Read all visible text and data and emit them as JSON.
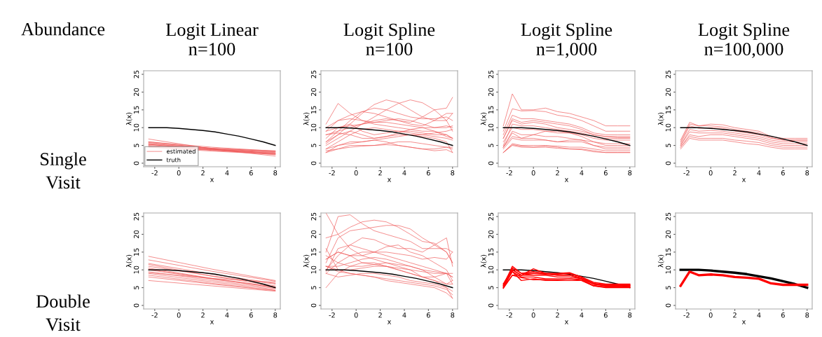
{
  "chart_data": [
    {
      "type": "line",
      "title": "Logit Linear\nn=100",
      "xlabel": "x",
      "ylabel": "λ(x)",
      "x": [
        -2.5,
        2.75,
        8
      ],
      "xlim": [
        -2.92,
        8.42
      ],
      "ylim": [
        -1,
        26
      ],
      "xticks": [
        -2,
        0,
        2,
        4,
        6,
        8
      ],
      "yticks": [
        0,
        5,
        10,
        15,
        20,
        25
      ],
      "legend": "bottom left",
      "annotations": [
        "Abundance",
        "Single\nVisit"
      ],
      "series": [
        {
          "name": "estimated",
          "color": "#ee5555",
          "values": [
            6.8,
            4.0,
            2.0
          ]
        },
        {
          "color": "#ee5555",
          "values": [
            6.0,
            4.1,
            2.7
          ]
        },
        {
          "color": "#ee5555",
          "values": [
            5.8,
            4.2,
            3.0
          ]
        },
        {
          "color": "#ee5555",
          "values": [
            5.5,
            4.2,
            3.3
          ]
        },
        {
          "color": "#ee5555",
          "values": [
            5.2,
            4.1,
            3.5
          ]
        },
        {
          "color": "#ee5555",
          "values": [
            5.0,
            3.8,
            2.9
          ]
        },
        {
          "color": "#ee5555",
          "values": [
            4.8,
            3.6,
            2.7
          ]
        },
        {
          "color": "#ee5555",
          "values": [
            4.5,
            3.8,
            3.2
          ]
        },
        {
          "color": "#ee5555",
          "values": [
            4.5,
            3.4,
            2.5
          ]
        },
        {
          "color": "#ee5555",
          "values": [
            5.5,
            3.9,
            2.6
          ]
        },
        {
          "color": "#ee5555",
          "values": [
            6.0,
            4.5,
            3.4
          ]
        },
        {
          "color": "#ee5555",
          "values": [
            5.3,
            3.7,
            2.4
          ]
        },
        {
          "name": "truth",
          "color": "#000000",
          "x": [
            -2.5,
            -1,
            0,
            1,
            2,
            3,
            4,
            5,
            6,
            7,
            8
          ],
          "values": [
            10,
            10,
            9.8,
            9.5,
            9.2,
            8.8,
            8.2,
            7.6,
            6.8,
            6,
            5
          ]
        }
      ]
    },
    {
      "type": "line",
      "title": "Logit Spline\nn=100",
      "xlabel": "x",
      "ylabel": "λ(x)",
      "x": [
        -2.5,
        -1.5,
        -0.5,
        0.5,
        1.5,
        2.5,
        3.5,
        4.5,
        5.5,
        6.5,
        7.5,
        8
      ],
      "xlim": [
        -2.92,
        8.42
      ],
      "ylim": [
        -1,
        26
      ],
      "xticks": [
        -2,
        0,
        2,
        4,
        6,
        8
      ],
      "yticks": [
        0,
        5,
        10,
        15,
        20,
        25
      ],
      "series": [
        {
          "color": "#ee5555",
          "values": [
            11,
            16.8,
            14,
            12,
            11,
            10.5,
            10,
            9.5,
            9,
            9,
            8,
            7
          ]
        },
        {
          "color": "#ee5555",
          "values": [
            8,
            9,
            10,
            11,
            12,
            12.5,
            12,
            11.5,
            13,
            15,
            15.5,
            18.5
          ]
        },
        {
          "color": "#ee5555",
          "values": [
            6,
            8,
            11,
            14,
            16.5,
            17.8,
            17,
            15,
            13,
            12,
            12,
            14
          ]
        },
        {
          "color": "#ee5555",
          "values": [
            5,
            7,
            9,
            11,
            13,
            15,
            16.8,
            17.8,
            17,
            15,
            12,
            9
          ]
        },
        {
          "color": "#ee5555",
          "values": [
            10,
            12,
            13.5,
            14.5,
            14,
            13,
            12,
            11,
            10.5,
            12,
            14,
            14
          ]
        },
        {
          "color": "#ee5555",
          "values": [
            9,
            10,
            10.5,
            11,
            11.5,
            11.5,
            11,
            10.5,
            10,
            10,
            10.5,
            10
          ]
        },
        {
          "color": "#ee5555",
          "values": [
            7,
            10,
            11,
            9,
            8,
            8.5,
            9,
            9,
            8.5,
            8,
            8,
            7
          ]
        },
        {
          "color": "#ee5555",
          "values": [
            4,
            6,
            8,
            9.5,
            10,
            9.5,
            9,
            8.5,
            8,
            8.5,
            9,
            9.5
          ]
        },
        {
          "color": "#ee5555",
          "values": [
            3,
            5,
            6,
            6,
            6.5,
            7,
            7.5,
            8,
            8,
            7.5,
            7,
            6.5
          ]
        },
        {
          "color": "#ee5555",
          "values": [
            3.5,
            4,
            5,
            5,
            5,
            5.5,
            6,
            6,
            5.5,
            5,
            4.5,
            4
          ]
        },
        {
          "color": "#ee5555",
          "values": [
            4,
            5,
            5.5,
            6,
            6.5,
            6,
            5,
            4.5,
            4,
            4,
            4.5,
            4.5
          ]
        },
        {
          "color": "#ee5555",
          "values": [
            8,
            8.5,
            8,
            7,
            7,
            7.5,
            8,
            8,
            7.5,
            7,
            6,
            3
          ]
        },
        {
          "color": "#ee5555",
          "values": [
            6,
            9,
            12,
            14.5,
            15.5,
            15,
            14,
            13,
            12.5,
            12.5,
            13,
            12
          ]
        },
        {
          "color": "#ee5555",
          "values": [
            5.5,
            8,
            9,
            8,
            7,
            7.5,
            8.5,
            9.5,
            10,
            9,
            7.5,
            7
          ]
        },
        {
          "color": "#ee5555",
          "values": [
            9,
            12,
            12.5,
            12,
            11.5,
            12,
            12.5,
            12,
            11,
            10,
            10,
            10.5
          ]
        },
        {
          "color": "#ee5555",
          "values": [
            3,
            4,
            4.5,
            4.8,
            5,
            5.2,
            5,
            4.5,
            4,
            3.5,
            3.8,
            3
          ]
        },
        {
          "color": "#000000",
          "x": [
            -2.5,
            -1,
            0,
            1,
            2,
            3,
            4,
            5,
            6,
            7,
            8
          ],
          "values": [
            10,
            10,
            9.8,
            9.5,
            9.2,
            8.8,
            8.2,
            7.6,
            6.8,
            6,
            5
          ]
        }
      ]
    },
    {
      "type": "line",
      "title": "Logit Spline\nn=1,000",
      "xlabel": "x",
      "ylabel": "λ(x)",
      "x": [
        -2.5,
        -1.75,
        -1,
        0,
        1,
        2,
        3,
        4,
        5,
        6,
        7,
        8
      ],
      "xlim": [
        -2.92,
        8.42
      ],
      "ylim": [
        -1,
        26
      ],
      "xticks": [
        -2,
        0,
        2,
        4,
        6,
        8
      ],
      "yticks": [
        0,
        5,
        10,
        15,
        20,
        25
      ],
      "series": [
        {
          "color": "#ee5555",
          "values": [
            10.5,
            19.5,
            15,
            15,
            15.5,
            14.5,
            14,
            13,
            12,
            10.5,
            10.5,
            10.5
          ]
        },
        {
          "color": "#ee5555",
          "values": [
            9,
            15.3,
            14.7,
            14.8,
            14.5,
            13.5,
            13,
            12,
            10.5,
            9,
            9,
            9
          ]
        },
        {
          "color": "#ee5555",
          "values": [
            8,
            13.5,
            12.5,
            12.5,
            12,
            11.5,
            11,
            10,
            8.5,
            8,
            8,
            8
          ]
        },
        {
          "color": "#ee5555",
          "values": [
            7,
            12.5,
            11.5,
            12,
            11.5,
            11,
            10.5,
            9.5,
            8,
            7.5,
            7.5,
            7.5
          ]
        },
        {
          "color": "#ee5555",
          "values": [
            7,
            12,
            11,
            11.5,
            11,
            10,
            9.5,
            9,
            8,
            7.5,
            7.2,
            7.2
          ]
        },
        {
          "color": "#ee5555",
          "values": [
            5,
            11,
            10.5,
            10.5,
            10,
            9.5,
            9,
            8.5,
            7.5,
            7,
            7,
            7
          ]
        },
        {
          "color": "#ee5555",
          "values": [
            4.5,
            9,
            8,
            8,
            9,
            9,
            8.5,
            7.5,
            6,
            5.5,
            5.5,
            5.5
          ]
        },
        {
          "color": "#ee5555",
          "values": [
            4.5,
            8.5,
            7,
            8,
            7.5,
            7.5,
            7,
            6.5,
            6,
            5,
            5,
            5
          ]
        },
        {
          "color": "#ee5555",
          "values": [
            4.5,
            7.5,
            7,
            7,
            6.5,
            6,
            6.5,
            6.5,
            5,
            4.5,
            4.5,
            4.5
          ]
        },
        {
          "color": "#ee5555",
          "values": [
            4,
            7,
            6.5,
            6.5,
            6.5,
            6,
            6,
            6,
            5,
            4,
            4,
            4
          ]
        },
        {
          "color": "#ee5555",
          "values": [
            3,
            5.5,
            5,
            5,
            5,
            4.8,
            4.5,
            4.5,
            4,
            3.5,
            3.5,
            3.5
          ]
        },
        {
          "color": "#ee5555",
          "values": [
            3,
            5.2,
            4.8,
            4.5,
            4.8,
            4.5,
            4,
            4,
            3.5,
            3,
            3,
            3
          ]
        },
        {
          "color": "#ee5555",
          "values": [
            3,
            5,
            4.5,
            4.5,
            4.5,
            4.2,
            4,
            3.8,
            3.2,
            3,
            3,
            3
          ]
        },
        {
          "color": "#ee5555",
          "values": [
            6,
            10,
            9.5,
            9.5,
            9,
            8.5,
            8.5,
            8,
            7,
            6.5,
            6.5,
            6.5
          ]
        },
        {
          "color": "#000000",
          "x": [
            -2.5,
            -1,
            0,
            1,
            2,
            3,
            4,
            5,
            6,
            7,
            8
          ],
          "values": [
            10,
            10,
            9.8,
            9.5,
            9.2,
            8.8,
            8.2,
            7.6,
            6.8,
            6,
            5
          ]
        }
      ]
    },
    {
      "type": "line",
      "title": "Logit Spline\nn=100,000",
      "xlabel": "x",
      "ylabel": "λ(x)",
      "x": [
        -2.5,
        -1.75,
        -1,
        0,
        1,
        2,
        3,
        4,
        5,
        6,
        7,
        8
      ],
      "xlim": [
        -2.92,
        8.42
      ],
      "ylim": [
        -1,
        26
      ],
      "xticks": [
        -2,
        0,
        2,
        4,
        6,
        8
      ],
      "yticks": [
        0,
        5,
        10,
        15,
        20,
        25
      ],
      "series": [
        {
          "color": "#ee5555",
          "values": [
            6.5,
            11.5,
            10.5,
            11,
            10.8,
            10,
            9.5,
            9,
            7.5,
            7,
            7,
            7
          ]
        },
        {
          "color": "#ee5555",
          "values": [
            6,
            11,
            10.5,
            10.5,
            10.2,
            9.5,
            9,
            8.5,
            7.2,
            6.5,
            6.5,
            6.5
          ]
        },
        {
          "color": "#ee5555",
          "values": [
            5.5,
            10.5,
            9.8,
            10,
            9.8,
            9,
            8.5,
            8,
            7,
            6.5,
            6.5,
            6.5
          ]
        },
        {
          "color": "#ee5555",
          "values": [
            5,
            9.5,
            9,
            9.2,
            9,
            8.5,
            8,
            7.5,
            6.5,
            6,
            6,
            6
          ]
        },
        {
          "color": "#ee5555",
          "values": [
            5,
            8.8,
            8.5,
            8.5,
            8.5,
            8,
            7.5,
            7,
            6,
            5.5,
            5.5,
            5.5
          ]
        },
        {
          "color": "#ee5555",
          "values": [
            4.5,
            8,
            7.5,
            8,
            8,
            7.5,
            7,
            6.5,
            5.5,
            5,
            5,
            5
          ]
        },
        {
          "color": "#ee5555",
          "values": [
            4,
            7,
            6.5,
            6.5,
            6.5,
            6,
            5.5,
            5.2,
            4.5,
            4,
            4,
            4
          ]
        },
        {
          "color": "#ee5555",
          "values": [
            4.5,
            7.5,
            7,
            7,
            7,
            6.5,
            6.2,
            5.8,
            5,
            4.5,
            4.5,
            4.5
          ]
        },
        {
          "color": "#000000",
          "x": [
            -2.5,
            -1,
            0,
            1,
            2,
            3,
            4,
            5,
            6,
            7,
            8
          ],
          "values": [
            10,
            10,
            9.8,
            9.5,
            9.2,
            8.8,
            8.2,
            7.6,
            6.8,
            6,
            5
          ]
        }
      ]
    },
    {
      "type": "line",
      "xlabel": "x",
      "ylabel": "λ(x)",
      "x": [
        -2.5,
        2.75,
        8
      ],
      "xlim": [
        -2.92,
        8.42
      ],
      "ylim": [
        -1,
        26
      ],
      "xticks": [
        -2,
        0,
        2,
        4,
        6,
        8
      ],
      "yticks": [
        0,
        5,
        10,
        15,
        20,
        25
      ],
      "annotations": [
        "Double\nVisit"
      ],
      "series": [
        {
          "color": "#ee5555",
          "values": [
            13.8,
            10.2,
            7.0
          ]
        },
        {
          "color": "#ee5555",
          "values": [
            12.8,
            9.6,
            6.8
          ]
        },
        {
          "color": "#ee5555",
          "values": [
            11.8,
            8.8,
            6.2
          ]
        },
        {
          "color": "#ee5555",
          "values": [
            11.5,
            8.2,
            5.5
          ]
        },
        {
          "color": "#ee5555",
          "values": [
            11,
            8.3,
            6
          ]
        },
        {
          "color": "#ee5555",
          "values": [
            10.5,
            7.6,
            5.2
          ]
        },
        {
          "color": "#ee5555",
          "values": [
            10,
            7.4,
            5.2
          ]
        },
        {
          "color": "#ee5555",
          "values": [
            9.5,
            7,
            4.8
          ]
        },
        {
          "color": "#ee5555",
          "values": [
            9,
            6.6,
            4.5
          ]
        },
        {
          "color": "#ee5555",
          "values": [
            8.5,
            6.2,
            4.2
          ]
        },
        {
          "color": "#ee5555",
          "values": [
            8,
            6,
            4.2
          ]
        },
        {
          "color": "#ee5555",
          "values": [
            7,
            5.5,
            4
          ]
        },
        {
          "color": "#ee5555",
          "values": [
            10.2,
            7.5,
            5
          ]
        },
        {
          "color": "#ee5555",
          "values": [
            9.2,
            7.6,
            6.5
          ]
        },
        {
          "color": "#000000",
          "x": [
            -2.5,
            -1,
            0,
            1,
            2,
            3,
            4,
            5,
            6,
            7,
            8
          ],
          "values": [
            10,
            10,
            9.8,
            9.5,
            9.2,
            8.8,
            8.2,
            7.6,
            6.8,
            6,
            5
          ]
        }
      ]
    },
    {
      "type": "line",
      "xlabel": "x",
      "ylabel": "λ(x)",
      "x": [
        -2.5,
        -1.5,
        -0.5,
        0.5,
        1.5,
        2.5,
        3.5,
        4.5,
        5.5,
        6.5,
        7.5,
        8
      ],
      "xlim": [
        -2.92,
        8.42
      ],
      "ylim": [
        -1,
        26
      ],
      "xticks": [
        -2,
        0,
        2,
        4,
        6,
        8
      ],
      "yticks": [
        0,
        5,
        10,
        15,
        20,
        25
      ],
      "series": [
        {
          "color": "#ee5555",
          "values": [
            26,
            20,
            16,
            14,
            13,
            12,
            11,
            10,
            8,
            7,
            5,
            2
          ]
        },
        {
          "color": "#ee5555",
          "values": [
            19,
            20,
            22,
            23.5,
            24,
            23.5,
            22,
            20,
            18,
            17.5,
            15,
            12
          ]
        },
        {
          "color": "#ee5555",
          "values": [
            15,
            25,
            25.5,
            23,
            21,
            20,
            19,
            18,
            16,
            16,
            16,
            15
          ]
        },
        {
          "color": "#ee5555",
          "values": [
            12,
            19,
            21,
            21.5,
            22,
            22.5,
            22.5,
            21.5,
            19,
            17,
            15,
            12
          ]
        },
        {
          "color": "#ee5555",
          "values": [
            10,
            14,
            17,
            19,
            18.5,
            17,
            16,
            16,
            15,
            17,
            19,
            11
          ]
        },
        {
          "color": "#ee5555",
          "values": [
            13,
            15,
            14,
            14,
            15,
            16.5,
            17,
            15,
            14,
            12,
            10,
            7
          ]
        },
        {
          "color": "#ee5555",
          "values": [
            9,
            12,
            14,
            15,
            15,
            15,
            14.5,
            14,
            13,
            13.5,
            13,
            15
          ]
        },
        {
          "color": "#ee5555",
          "values": [
            14,
            12,
            11,
            11,
            11.5,
            12,
            11.5,
            11,
            10,
            8,
            6,
            6
          ]
        },
        {
          "color": "#ee5555",
          "values": [
            5,
            9,
            11,
            12,
            12,
            11,
            10,
            9,
            8,
            8,
            9,
            8
          ]
        },
        {
          "color": "#ee5555",
          "values": [
            16,
            10,
            10,
            10.5,
            11,
            11,
            10.5,
            10,
            9.5,
            9,
            9,
            9
          ]
        },
        {
          "color": "#ee5555",
          "values": [
            11,
            10,
            9,
            8.5,
            8,
            7.5,
            7,
            6.5,
            6,
            5.5,
            4.5,
            3
          ]
        },
        {
          "color": "#ee5555",
          "values": [
            11,
            9.5,
            9,
            8.5,
            8,
            7,
            6.5,
            6,
            5.5,
            5,
            3.5,
            2
          ]
        },
        {
          "color": "#ee5555",
          "values": [
            9,
            8,
            8.5,
            9,
            9,
            8.5,
            8,
            7,
            6.5,
            6,
            5,
            4
          ]
        },
        {
          "color": "#ee5555",
          "values": [
            13,
            15,
            14,
            12,
            11.5,
            11,
            10,
            9,
            8,
            7,
            6,
            7
          ]
        },
        {
          "color": "#ee5555",
          "values": [
            11,
            11,
            12,
            13,
            13.5,
            13,
            12,
            11,
            10,
            9.5,
            9,
            8
          ]
        },
        {
          "color": "#ee5555",
          "values": [
            9.5,
            16,
            17,
            16,
            15,
            14,
            13,
            12,
            11,
            10,
            9,
            6
          ]
        },
        {
          "color": "#000000",
          "x": [
            -2.5,
            -1,
            0,
            1,
            2,
            3,
            4,
            5,
            6,
            7,
            8
          ],
          "values": [
            10,
            10,
            9.8,
            9.5,
            9.2,
            8.8,
            8.2,
            7.6,
            6.8,
            6,
            5
          ]
        }
      ]
    },
    {
      "type": "line",
      "xlabel": "x",
      "ylabel": "λ(x)",
      "x": [
        -2.5,
        -1.75,
        -1,
        0,
        1,
        2,
        3,
        4,
        5,
        6,
        7,
        8
      ],
      "xlim": [
        -2.92,
        8.42
      ],
      "ylim": [
        -1,
        26
      ],
      "xticks": [
        -2,
        0,
        2,
        4,
        6,
        8
      ],
      "yticks": [
        0,
        5,
        10,
        15,
        20,
        25
      ],
      "series": [
        {
          "color": "#000000",
          "x": [
            -2.5,
            -1,
            0,
            1,
            2,
            3,
            4,
            5,
            6,
            7,
            8
          ],
          "values": [
            10,
            10,
            9.8,
            9.5,
            9.2,
            8.8,
            8.2,
            7.6,
            6.8,
            6,
            5
          ]
        },
        {
          "color": "#ff0000",
          "values": [
            5.5,
            11,
            9,
            9,
            9,
            8.5,
            8.5,
            7.5,
            6,
            5.5,
            5.5,
            5.5
          ]
        },
        {
          "color": "#ff0000",
          "values": [
            6,
            10,
            8.5,
            10.3,
            9,
            8.8,
            9,
            8,
            6.5,
            6,
            6,
            6
          ]
        },
        {
          "color": "#ff0000",
          "values": [
            5,
            9.5,
            7,
            7.5,
            7,
            7,
            7,
            7,
            5.5,
            5,
            5,
            5
          ]
        },
        {
          "color": "#ff0000",
          "values": [
            5,
            8.5,
            8.5,
            8.5,
            8.5,
            8,
            8,
            7.5,
            6,
            5.5,
            5.5,
            5.5
          ]
        },
        {
          "color": "#ff0000",
          "values": [
            5.5,
            9.5,
            8,
            8,
            7.5,
            7.5,
            7.5,
            7,
            5.5,
            5.2,
            5.2,
            5.2
          ]
        },
        {
          "color": "#ff0000",
          "values": [
            6,
            10.5,
            9,
            9.5,
            9,
            9,
            9.2,
            8,
            6,
            5.8,
            5.8,
            5.8
          ]
        },
        {
          "color": "#ff0000",
          "values": [
            4.8,
            8.5,
            7.8,
            7.2,
            7.3,
            7.2,
            7.5,
            7.3,
            5.6,
            5.1,
            5.1,
            5.1
          ]
        },
        {
          "color": "#ff0000",
          "values": [
            5.5,
            10,
            8.5,
            9,
            8.8,
            8.5,
            8.5,
            7.8,
            6.2,
            5.7,
            5.7,
            5.7
          ]
        }
      ]
    },
    {
      "type": "line",
      "xlabel": "x",
      "ylabel": "λ(x)",
      "x": [
        -2.5,
        -1.75,
        -1,
        0,
        1,
        2,
        3,
        4,
        5,
        6,
        7,
        8
      ],
      "xlim": [
        -2.92,
        8.42
      ],
      "ylim": [
        -1,
        26
      ],
      "xticks": [
        -2,
        0,
        2,
        4,
        6,
        8
      ],
      "yticks": [
        0,
        5,
        10,
        15,
        20,
        25
      ],
      "series": [
        {
          "color": "#000000",
          "x": [
            -2.5,
            -1,
            0,
            1,
            2,
            3,
            4,
            5,
            6,
            7,
            8
          ],
          "values": [
            10,
            10,
            9.8,
            9.5,
            9.2,
            8.8,
            8.2,
            7.6,
            6.8,
            6,
            5
          ]
        },
        {
          "color": "#ff0000",
          "values": [
            5.5,
            9.5,
            8.5,
            8.7,
            8.5,
            8,
            7.8,
            7.5,
            6.2,
            5.8,
            5.8,
            5.8
          ]
        }
      ]
    }
  ]
}
